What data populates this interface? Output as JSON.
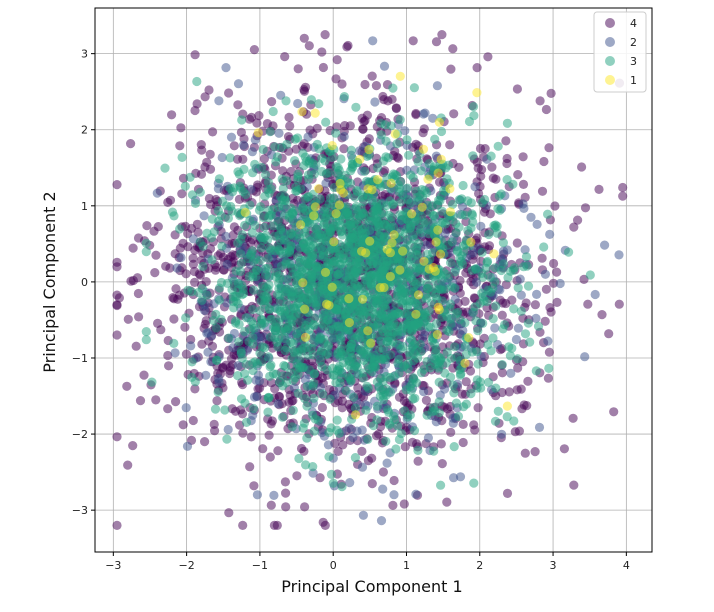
{
  "chart_data": {
    "type": "scatter",
    "title": "",
    "xlabel": "Principal Component 1",
    "ylabel": "Principal Component 2",
    "xlim": [
      -3.25,
      4.35
    ],
    "ylim": [
      -3.55,
      3.6
    ],
    "xticks": [
      -3,
      -2,
      -1,
      0,
      1,
      2,
      3,
      4
    ],
    "yticks": [
      -3,
      -2,
      -1,
      0,
      1,
      2,
      3
    ],
    "xtick_labels": [
      "−3",
      "−2",
      "−1",
      "0",
      "1",
      "2",
      "3",
      "4"
    ],
    "ytick_labels": [
      "−3",
      "−2",
      "−1",
      "0",
      "1",
      "2",
      "3"
    ],
    "grid": true,
    "legend_position": "top-right",
    "series": [
      {
        "name": "4",
        "color": "#440154",
        "count": 1800,
        "center": [
          0.2,
          0.0
        ],
        "spread": [
          1.25,
          1.15
        ],
        "range": [
          -2.95,
          3.95
        ]
      },
      {
        "name": "2",
        "color": "#3b528b",
        "count": 550,
        "center": [
          0.4,
          -0.1
        ],
        "spread": [
          1.1,
          1.1
        ],
        "range": [
          -2.4,
          3.9
        ]
      },
      {
        "name": "3",
        "color": "#21a17f",
        "count": 1800,
        "center": [
          0.3,
          0.0
        ],
        "spread": [
          0.95,
          0.9
        ],
        "range": [
          -2.55,
          3.75
        ]
      },
      {
        "name": "1",
        "color": "#fde725",
        "count": 75,
        "center": [
          0.7,
          0.4
        ],
        "spread": [
          0.8,
          0.95
        ],
        "range": [
          -1.2,
          3.1
        ]
      }
    ]
  }
}
